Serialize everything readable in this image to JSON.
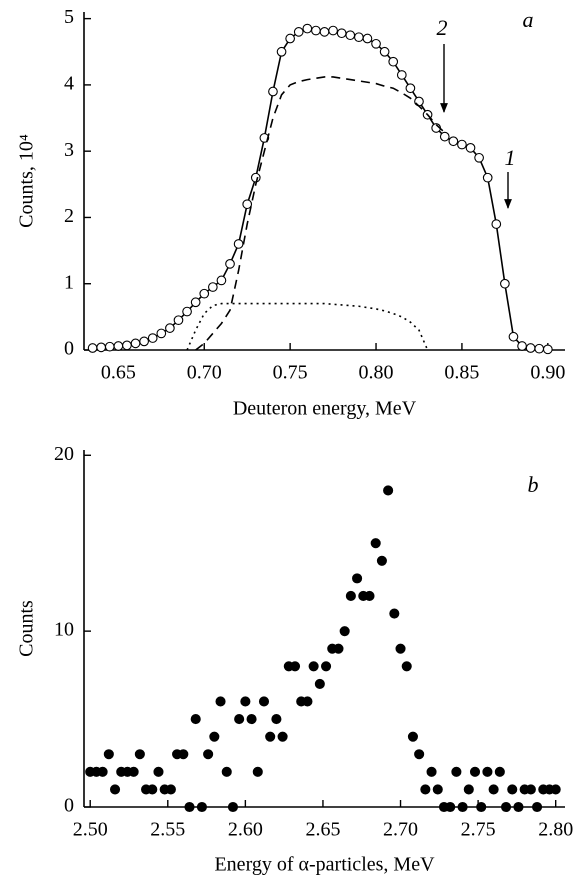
{
  "chart_data": [
    {
      "type": "line",
      "x_label": "Deuteron energy, MeV",
      "y_label": "Counts, 10⁴",
      "annotations": [
        "a",
        "2",
        "1"
      ],
      "xlim": [
        0.63,
        0.91
      ],
      "ylim": [
        0,
        5.1
      ],
      "xticks": [
        0.65,
        {
          "value": 0.7,
          "label": "0.70"
        },
        0.75,
        {
          "value": 0.8,
          "label": "0.80"
        },
        0.85,
        {
          "value": 0.9,
          "label": "0.90"
        }
      ],
      "yticks": [
        0,
        1,
        2,
        3,
        4,
        5
      ],
      "x": [
        0.635,
        0.64,
        0.645,
        0.65,
        0.655,
        0.66,
        0.665,
        0.67,
        0.675,
        0.68,
        0.685,
        0.69,
        0.695,
        0.7,
        0.705,
        0.71,
        0.715,
        0.72,
        0.725,
        0.73,
        0.735,
        0.74,
        0.745,
        0.75,
        0.755,
        0.76,
        0.765,
        0.77,
        0.775,
        0.78,
        0.785,
        0.79,
        0.795,
        0.8,
        0.805,
        0.81,
        0.815,
        0.82,
        0.825,
        0.83,
        0.835,
        0.84,
        0.845,
        0.85,
        0.855,
        0.86,
        0.865,
        0.87,
        0.875,
        0.88,
        0.885,
        0.89,
        0.895,
        0.9
      ],
      "series": [
        {
          "color": "#000000",
          "line_style": "solid",
          "marker": "open-circle",
          "values": [
            0.03,
            0.04,
            0.05,
            0.06,
            0.07,
            0.1,
            0.13,
            0.18,
            0.25,
            0.33,
            0.45,
            0.58,
            0.72,
            0.85,
            0.95,
            1.05,
            1.3,
            1.6,
            2.2,
            2.6,
            3.2,
            3.9,
            4.5,
            4.7,
            4.8,
            4.85,
            4.82,
            4.8,
            4.82,
            4.78,
            4.75,
            4.72,
            4.7,
            4.62,
            4.5,
            4.35,
            4.15,
            3.95,
            3.75,
            3.55,
            3.35,
            3.22,
            3.15,
            3.1,
            3.05,
            2.9,
            2.6,
            1.9,
            1.0,
            0.2,
            0.06,
            0.03,
            0.02,
            0.01
          ]
        },
        {
          "color": "#000000",
          "line_style": "dashed",
          "marker": "none",
          "values": [
            null,
            null,
            null,
            null,
            null,
            null,
            null,
            null,
            null,
            null,
            null,
            null,
            0,
            0.1,
            0.25,
            0.4,
            0.6,
            1.2,
            1.9,
            2.5,
            3.0,
            3.5,
            3.85,
            4.0,
            4.05,
            4.08,
            4.1,
            4.12,
            4.12,
            4.1,
            4.08,
            4.06,
            4.04,
            4.02,
            3.98,
            3.95,
            3.88,
            3.8,
            3.68,
            3.55,
            3.4,
            3.28,
            null,
            null,
            null,
            null,
            null,
            null,
            null,
            null,
            null,
            null,
            null,
            null
          ]
        },
        {
          "color": "#000000",
          "line_style": "dotted",
          "marker": "none",
          "values": [
            null,
            null,
            null,
            null,
            null,
            null,
            null,
            null,
            null,
            null,
            null,
            0,
            0.3,
            0.55,
            0.67,
            0.7,
            0.7,
            0.7,
            0.7,
            0.7,
            0.7,
            0.7,
            0.7,
            0.7,
            0.7,
            0.7,
            0.7,
            0.7,
            0.69,
            0.68,
            0.67,
            0.66,
            0.64,
            0.62,
            0.59,
            0.55,
            0.5,
            0.42,
            0.3,
            0.0,
            null,
            null,
            null,
            null,
            null,
            null,
            null,
            null,
            null,
            null,
            null,
            null,
            null,
            null
          ]
        }
      ]
    },
    {
      "type": "scatter",
      "x_label": "Energy of α-particles, MeV",
      "y_label": "Counts",
      "annotations": [
        "b"
      ],
      "xlim": [
        2.496,
        2.806
      ],
      "ylim": [
        0,
        20.3
      ],
      "xticks": [
        {
          "value": 2.5,
          "label": "2.50"
        },
        2.55,
        {
          "value": 2.6,
          "label": "2.60"
        },
        2.65,
        {
          "value": 2.7,
          "label": "2.70"
        },
        2.75,
        {
          "value": 2.8,
          "label": "2.80"
        }
      ],
      "yticks": [
        0,
        10,
        20
      ],
      "x": [
        2.5,
        2.504,
        2.508,
        2.512,
        2.516,
        2.52,
        2.524,
        2.528,
        2.532,
        2.536,
        2.54,
        2.544,
        2.548,
        2.552,
        2.556,
        2.56,
        2.564,
        2.568,
        2.572,
        2.576,
        2.58,
        2.584,
        2.588,
        2.592,
        2.596,
        2.6,
        2.604,
        2.608,
        2.612,
        2.616,
        2.62,
        2.624,
        2.628,
        2.632,
        2.636,
        2.64,
        2.644,
        2.648,
        2.652,
        2.656,
        2.66,
        2.664,
        2.668,
        2.672,
        2.676,
        2.68,
        2.684,
        2.688,
        2.692,
        2.696,
        2.7,
        2.704,
        2.708,
        2.712,
        2.716,
        2.72,
        2.724,
        2.728,
        2.732,
        2.736,
        2.74,
        2.744,
        2.748,
        2.752,
        2.756,
        2.76,
        2.764,
        2.768,
        2.772,
        2.776,
        2.78,
        2.784,
        2.788,
        2.792,
        2.796,
        2.8
      ],
      "series": [
        {
          "color": "#000000",
          "line_style": "none",
          "marker": "filled-circle",
          "values": [
            2,
            2,
            2,
            3,
            1,
            2,
            2,
            2,
            3,
            1,
            1,
            2,
            1,
            1,
            3,
            3,
            0,
            5,
            0,
            3,
            4,
            6,
            2,
            0,
            5,
            6,
            5,
            2,
            6,
            4,
            5,
            4,
            8,
            8,
            6,
            6,
            8,
            7,
            8,
            9,
            9,
            10,
            12,
            13,
            12,
            12,
            15,
            14,
            18,
            11,
            9,
            8,
            4,
            3,
            1,
            2,
            1,
            0,
            0,
            2,
            0,
            1,
            2,
            0,
            2,
            1,
            2,
            0,
            1,
            0,
            1,
            1,
            0,
            1,
            1,
            1
          ]
        }
      ]
    }
  ]
}
